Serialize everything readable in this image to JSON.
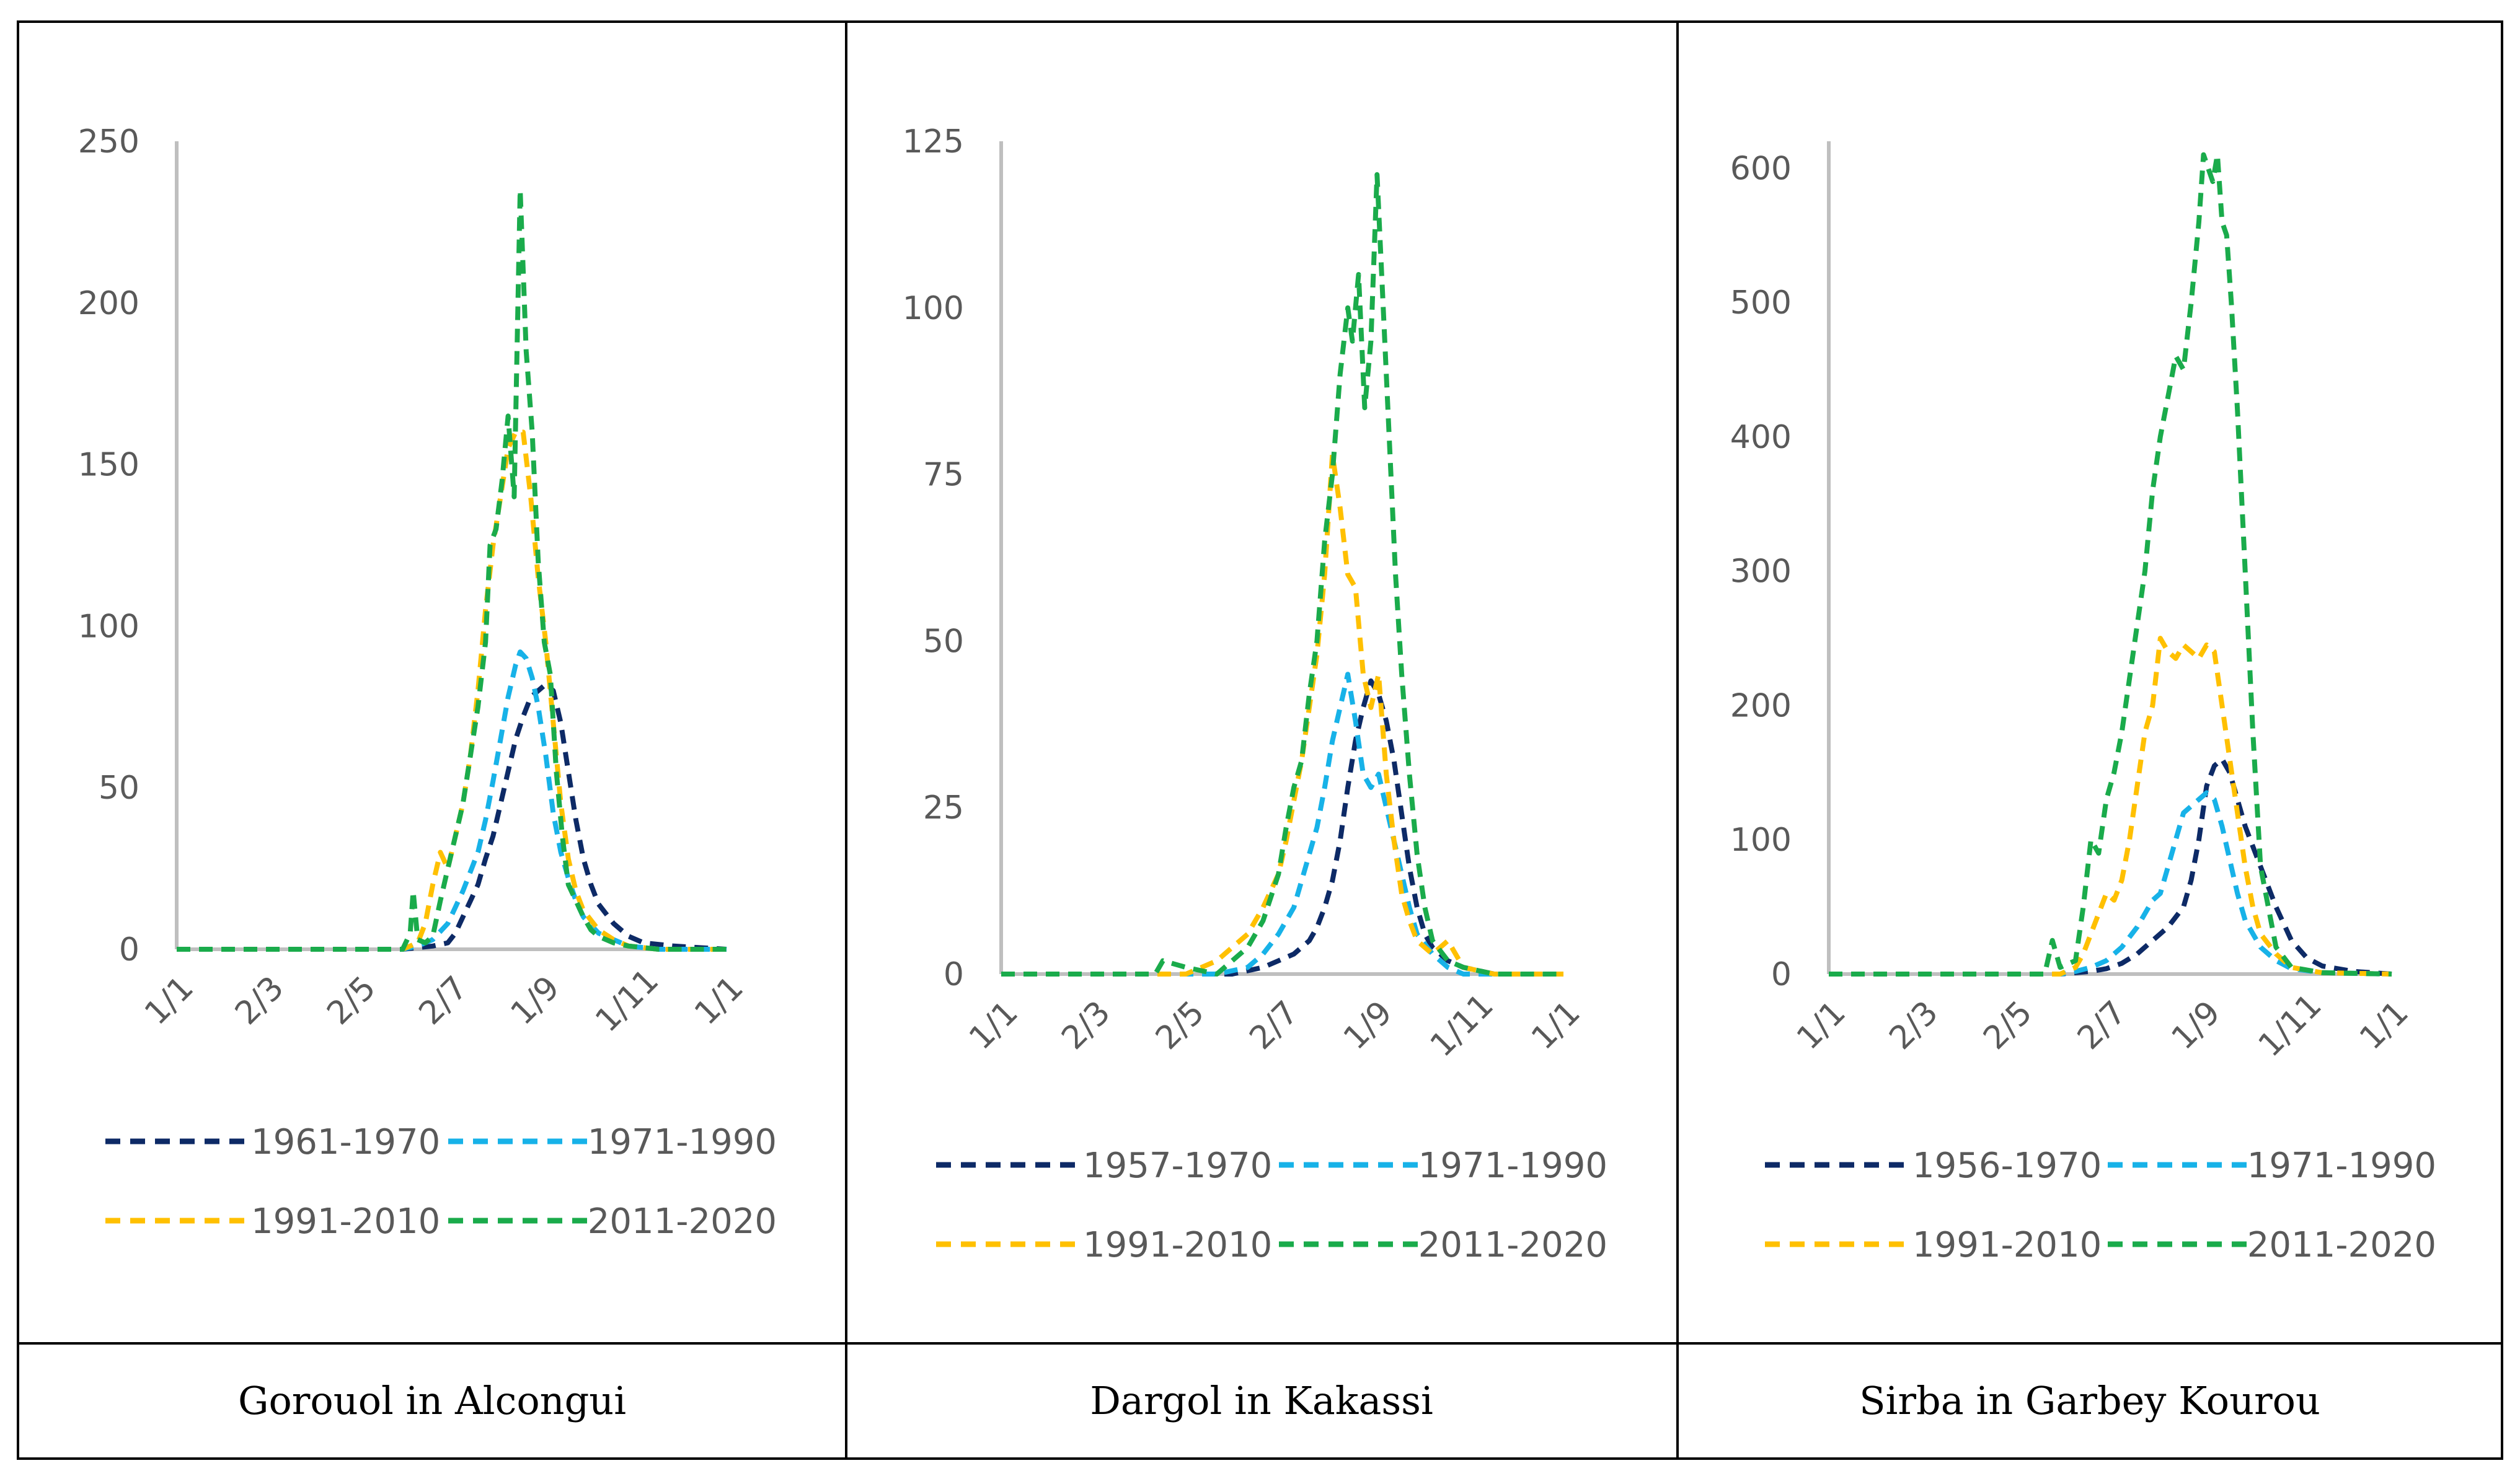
{
  "colors": {
    "navy": "#0D2A66",
    "lightblue": "#17B2E8",
    "yellow": "#FFC000",
    "green": "#1AAB4B",
    "axis": "#BFBFBF",
    "text": "#595959"
  },
  "panels": [
    {
      "caption": "Gorouol in Alcongui",
      "chart_data": {
        "type": "line",
        "title": "",
        "xlabel": "",
        "ylabel": "",
        "x_ticks": [
          "1/1",
          "2/3",
          "2/5",
          "2/7",
          "1/9",
          "1/11",
          "1/1"
        ],
        "x_tick_days": [
          0,
          60,
          121,
          182,
          243,
          304,
          365
        ],
        "y_ticks": [
          "0",
          "50",
          "100",
          "150",
          "200",
          "250"
        ],
        "ylim": [
          0,
          250
        ],
        "series": [
          {
            "name": "1961-1970",
            "color": "navy",
            "x": [
              0,
              150,
              170,
              180,
              185,
              190,
              195,
              200,
              205,
              210,
              215,
              220,
              225,
              230,
              235,
              240,
              245,
              250,
              255,
              260,
              265,
              270,
              275,
              280,
              290,
              300,
              310,
              330,
              365
            ],
            "y": [
              0,
              0,
              1,
              2,
              5,
              10,
              15,
              20,
              28,
              35,
              45,
              55,
              65,
              72,
              78,
              80,
              82,
              80,
              70,
              55,
              40,
              28,
              20,
              14,
              8,
              4,
              2,
              1,
              0
            ]
          },
          {
            "name": "1971-1990",
            "color": "lightblue",
            "x": [
              0,
              150,
              160,
              170,
              180,
              190,
              200,
              205,
              210,
              215,
              220,
              225,
              228,
              232,
              236,
              240,
              245,
              250,
              255,
              260,
              265,
              270,
              280,
              290,
              300,
              320,
              365
            ],
            "y": [
              0,
              0,
              1,
              3,
              8,
              18,
              30,
              40,
              52,
              65,
              78,
              88,
              92,
              90,
              84,
              75,
              60,
              42,
              30,
              22,
              15,
              10,
              5,
              3,
              1,
              0,
              0
            ]
          },
          {
            "name": "1991-2010",
            "color": "yellow",
            "x": [
              0,
              150,
              160,
              165,
              170,
              175,
              180,
              185,
              190,
              195,
              200,
              205,
              210,
              215,
              220,
              225,
              230,
              235,
              240,
              245,
              250,
              255,
              260,
              265,
              270,
              280,
              290,
              300,
              320,
              365
            ],
            "y": [
              0,
              0,
              2,
              8,
              20,
              30,
              25,
              35,
              45,
              60,
              80,
              105,
              125,
              140,
              155,
              160,
              160,
              140,
              115,
              95,
              70,
              45,
              28,
              18,
              12,
              6,
              3,
              1,
              0,
              0
            ]
          },
          {
            "name": "2011-2020",
            "color": "green",
            "x": [
              0,
              150,
              155,
              157,
              160,
              165,
              170,
              175,
              180,
              185,
              190,
              195,
              200,
              205,
              208,
              212,
              216,
              220,
              224,
              228,
              232,
              236,
              240,
              244,
              248,
              252,
              256,
              260,
              265,
              270,
              275,
              280,
              290,
              300,
              320,
              365
            ],
            "y": [
              0,
              0,
              5,
              18,
              3,
              2,
              4,
              15,
              25,
              35,
              45,
              60,
              75,
              95,
              125,
              130,
              145,
              165,
              140,
              235,
              185,
              160,
              120,
              95,
              85,
              55,
              35,
              20,
              15,
              10,
              6,
              4,
              2,
              1,
              0,
              0
            ]
          }
        ]
      }
    },
    {
      "caption": "Dargol in Kakassi",
      "chart_data": {
        "type": "line",
        "title": "",
        "xlabel": "",
        "ylabel": "",
        "x_ticks": [
          "1/1",
          "2/3",
          "2/5",
          "2/7",
          "1/9",
          "1/11",
          "1/1"
        ],
        "x_tick_days": [
          0,
          60,
          121,
          182,
          243,
          304,
          365
        ],
        "y_ticks": [
          "0",
          "25",
          "50",
          "75",
          "100",
          "125"
        ],
        "ylim": [
          0,
          125
        ],
        "series": [
          {
            "name": "1957-1970",
            "color": "navy",
            "x": [
              0,
              150,
              170,
              180,
              190,
              200,
              205,
              210,
              215,
              220,
              225,
              230,
              235,
              240,
              245,
              250,
              255,
              260,
              265,
              270,
              275,
              280,
              290,
              300,
              320,
              365
            ],
            "y": [
              0,
              0,
              1,
              2,
              3,
              5,
              7,
              10,
              14,
              20,
              28,
              35,
              40,
              44,
              42,
              38,
              32,
              24,
              16,
              10,
              6,
              4,
              2,
              1,
              0,
              0
            ]
          },
          {
            "name": "1971-1990",
            "color": "lightblue",
            "x": [
              0,
              140,
              160,
              170,
              180,
              190,
              195,
              200,
              205,
              210,
              215,
              220,
              225,
              230,
              235,
              240,
              245,
              250,
              255,
              260,
              265,
              270,
              280,
              290,
              300,
              320,
              365
            ],
            "y": [
              0,
              0,
              1,
              3,
              6,
              10,
              14,
              18,
              22,
              28,
              35,
              40,
              45,
              38,
              30,
              28,
              30,
              25,
              20,
              15,
              10,
              6,
              3,
              1,
              0,
              0,
              0
            ]
          },
          {
            "name": "1991-2010",
            "color": "yellow",
            "x": [
              0,
              120,
              140,
              150,
              160,
              170,
              180,
              185,
              190,
              195,
              200,
              205,
              210,
              215,
              220,
              225,
              230,
              235,
              240,
              245,
              250,
              255,
              260,
              265,
              270,
              280,
              290,
              300,
              320,
              365
            ],
            "y": [
              0,
              0,
              2,
              4,
              6,
              10,
              15,
              20,
              26,
              32,
              40,
              48,
              60,
              78,
              70,
              60,
              58,
              45,
              40,
              45,
              30,
              20,
              12,
              8,
              5,
              3,
              5,
              1,
              0,
              0
            ]
          },
          {
            "name": "2011-2020",
            "color": "green",
            "x": [
              0,
              100,
              105,
              120,
              140,
              150,
              160,
              170,
              180,
              185,
              190,
              195,
              200,
              205,
              210,
              215,
              220,
              225,
              228,
              232,
              236,
              240,
              244,
              248,
              252,
              256,
              260,
              265,
              270,
              275,
              280,
              290,
              300,
              320,
              365
            ],
            "y": [
              0,
              0,
              2,
              1,
              0,
              2,
              4,
              8,
              15,
              22,
              28,
              32,
              42,
              50,
              65,
              75,
              90,
              100,
              95,
              105,
              85,
              95,
              120,
              100,
              80,
              60,
              45,
              30,
              18,
              10,
              5,
              2,
              1,
              0,
              0
            ]
          }
        ]
      }
    },
    {
      "caption": "Sirba in Garbey Kourou",
      "chart_data": {
        "type": "line",
        "title": "",
        "xlabel": "",
        "ylabel": "",
        "x_ticks": [
          "1/1",
          "2/3",
          "2/5",
          "2/7",
          "1/9",
          "1/11",
          "1/1"
        ],
        "x_tick_days": [
          0,
          60,
          121,
          182,
          243,
          304,
          365
        ],
        "y_ticks": [
          "0",
          "100",
          "200",
          "300",
          "400",
          "500",
          "600"
        ],
        "ylim": [
          0,
          620
        ],
        "series": [
          {
            "name": "1956-1970",
            "color": "navy",
            "x": [
              0,
              150,
              170,
              180,
              190,
              200,
              210,
              220,
              230,
              235,
              240,
              245,
              250,
              255,
              260,
              265,
              270,
              275,
              280,
              290,
              300,
              310,
              320,
              340,
              365
            ],
            "y": [
              0,
              0,
              2,
              4,
              8,
              15,
              25,
              35,
              50,
              70,
              100,
              140,
              155,
              160,
              150,
              130,
              110,
              95,
              80,
              50,
              25,
              12,
              6,
              2,
              0
            ]
          },
          {
            "name": "1971-1990",
            "color": "lightblue",
            "x": [
              0,
              150,
              160,
              170,
              180,
              190,
              200,
              210,
              215,
              220,
              225,
              230,
              235,
              240,
              245,
              250,
              255,
              260,
              265,
              270,
              280,
              290,
              300,
              320,
              365
            ],
            "y": [
              0,
              0,
              2,
              5,
              10,
              20,
              35,
              55,
              60,
              80,
              100,
              120,
              125,
              130,
              135,
              130,
              110,
              85,
              60,
              40,
              20,
              10,
              4,
              1,
              0
            ]
          },
          {
            "name": "1991-2010",
            "color": "yellow",
            "x": [
              0,
              150,
              160,
              165,
              170,
              175,
              180,
              185,
              190,
              195,
              200,
              205,
              210,
              215,
              220,
              225,
              230,
              235,
              240,
              245,
              250,
              255,
              260,
              265,
              270,
              275,
              280,
              290,
              300,
              320,
              365
            ],
            "y": [
              0,
              0,
              5,
              15,
              30,
              45,
              60,
              55,
              70,
              100,
              140,
              180,
              200,
              250,
              240,
              235,
              245,
              240,
              235,
              245,
              240,
              200,
              160,
              120,
              80,
              50,
              30,
              15,
              5,
              1,
              0
            ]
          },
          {
            "name": "2011-2020",
            "color": "green",
            "x": [
              0,
              140,
              145,
              150,
              160,
              165,
              170,
              175,
              180,
              185,
              190,
              195,
              200,
              205,
              210,
              215,
              220,
              225,
              230,
              235,
              240,
              243,
              246,
              249,
              252,
              255,
              258,
              261,
              265,
              270,
              275,
              280,
              290,
              300,
              320,
              365
            ],
            "y": [
              0,
              0,
              25,
              5,
              10,
              50,
              100,
              90,
              130,
              150,
              180,
              220,
              260,
              300,
              360,
              400,
              430,
              460,
              450,
              500,
              560,
              610,
              600,
              590,
              610,
              560,
              550,
              500,
              420,
              300,
              180,
              80,
              20,
              5,
              1,
              0
            ]
          }
        ]
      }
    }
  ]
}
